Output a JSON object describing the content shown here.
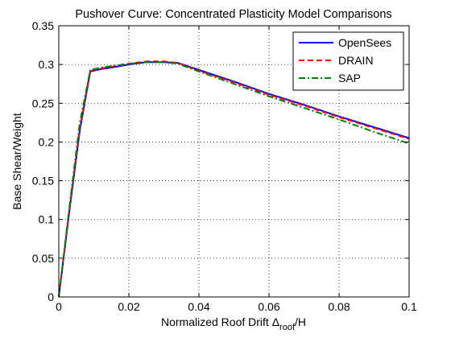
{
  "chart_data": {
    "type": "line",
    "title": "Pushover Curve:  Concentrated Plasticity Model Comparisons",
    "xlabel": {
      "main": "Normalized Roof Drift ",
      "symbol": "Δ",
      "subscript": "roof",
      "suffix": "/H"
    },
    "ylabel": "Base Shear/Weight",
    "xlim": [
      0,
      0.1
    ],
    "ylim": [
      0,
      0.35
    ],
    "xticks": [
      0,
      0.02,
      0.04,
      0.06,
      0.08,
      0.1
    ],
    "xtick_labels": [
      "0",
      "0.02",
      "0.04",
      "0.06",
      "0.08",
      "0.1"
    ],
    "yticks": [
      0,
      0.05,
      0.1,
      0.15,
      0.2,
      0.25,
      0.3,
      0.35
    ],
    "ytick_labels": [
      "0",
      "0.05",
      "0.1",
      "0.15",
      "0.2",
      "0.25",
      "0.3",
      "0.35"
    ],
    "grid": true,
    "legend_position": "top-right",
    "series": [
      {
        "name": "OpenSees",
        "color": "#0000ff",
        "dash": "solid",
        "x": [
          0,
          0.003,
          0.006,
          0.009,
          0.012,
          0.015,
          0.02,
          0.025,
          0.03,
          0.034,
          0.04,
          0.05,
          0.06,
          0.07,
          0.08,
          0.09,
          0.1
        ],
        "y": [
          0,
          0.11,
          0.215,
          0.291,
          0.294,
          0.296,
          0.3,
          0.303,
          0.303,
          0.302,
          0.293,
          0.278,
          0.262,
          0.248,
          0.233,
          0.219,
          0.205
        ]
      },
      {
        "name": "DRAIN",
        "color": "#ff0000",
        "dash": "dashed",
        "x": [
          0,
          0.003,
          0.006,
          0.009,
          0.012,
          0.015,
          0.02,
          0.025,
          0.03,
          0.034,
          0.04,
          0.05,
          0.06,
          0.07,
          0.08,
          0.09,
          0.1
        ],
        "y": [
          0,
          0.112,
          0.218,
          0.292,
          0.295,
          0.297,
          0.301,
          0.304,
          0.304,
          0.302,
          0.292,
          0.277,
          0.261,
          0.247,
          0.232,
          0.218,
          0.204
        ]
      },
      {
        "name": "SAP",
        "color": "#008000",
        "dash": "dashdot",
        "x": [
          0,
          0.003,
          0.006,
          0.009,
          0.012,
          0.015,
          0.02,
          0.025,
          0.03,
          0.034,
          0.04,
          0.05,
          0.06,
          0.07,
          0.08,
          0.09,
          0.1
        ],
        "y": [
          0,
          0.115,
          0.225,
          0.293,
          0.296,
          0.298,
          0.301,
          0.303,
          0.303,
          0.301,
          0.291,
          0.275,
          0.259,
          0.244,
          0.229,
          0.213,
          0.198
        ]
      }
    ]
  }
}
